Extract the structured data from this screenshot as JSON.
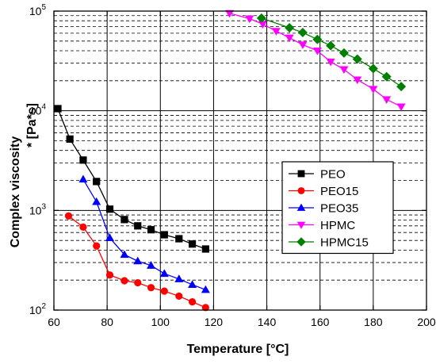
{
  "chart_data": {
    "type": "scatter",
    "title": "",
    "xlabel": "Temperature [°C]",
    "ylabel": "Complex viscosity",
    "ylabel_unit": "* [Pa*s]",
    "xlim": [
      60,
      200
    ],
    "ylim": [
      100,
      100000
    ],
    "yscale": "log",
    "grid": true,
    "legend_position": "center-right",
    "x_ticks": [
      60,
      80,
      100,
      120,
      140,
      160,
      180,
      200
    ],
    "y_tick_mantissa": "10",
    "y_ticks": [
      {
        "value": 100,
        "exponent": "2"
      },
      {
        "value": 1000,
        "exponent": "3"
      },
      {
        "value": 10000,
        "exponent": "4"
      },
      {
        "value": 100000,
        "exponent": "5"
      }
    ],
    "series": [
      {
        "name": "PEO",
        "color": "#000000",
        "marker": "square",
        "x": [
          61.5,
          66,
          71,
          76,
          81,
          86.5,
          91.5,
          96.5,
          101.5,
          107,
          112,
          117
        ],
        "y": [
          10500,
          5200,
          3200,
          1950,
          1030,
          810,
          700,
          640,
          570,
          520,
          460,
          410
        ]
      },
      {
        "name": "PEO15",
        "color": "#ff0000",
        "marker": "circle",
        "x": [
          65.5,
          71,
          76,
          81,
          86.5,
          91.5,
          96.5,
          101.5,
          107,
          112,
          117
        ],
        "y": [
          880,
          680,
          440,
          225,
          197,
          188,
          168,
          155,
          138,
          121,
          106
        ]
      },
      {
        "name": "PEO35",
        "color": "#0000ff",
        "marker": "triangle-up",
        "x": [
          71,
          76,
          81,
          86.5,
          91.5,
          96.5,
          101.5,
          107,
          112,
          117
        ],
        "y": [
          2050,
          1220,
          530,
          360,
          310,
          280,
          232,
          205,
          180,
          160
        ]
      },
      {
        "name": "HPMC",
        "color": "#ff00ff",
        "marker": "triangle-down",
        "x": [
          126,
          133.5,
          138.5,
          143.5,
          148.5,
          153.5,
          159,
          164,
          169,
          174,
          180,
          185,
          190.5
        ],
        "y": [
          95000,
          84000,
          74000,
          63000,
          54000,
          46000,
          40000,
          31000,
          26000,
          20500,
          16500,
          13000,
          11000
        ]
      },
      {
        "name": "HPMC15",
        "color": "#008000",
        "marker": "diamond",
        "x": [
          138,
          148.5,
          153.5,
          159,
          164,
          169,
          174,
          180,
          185,
          190.5
        ],
        "y": [
          85000,
          68000,
          61000,
          52000,
          45000,
          38000,
          33000,
          26500,
          22000,
          17500
        ]
      }
    ]
  }
}
